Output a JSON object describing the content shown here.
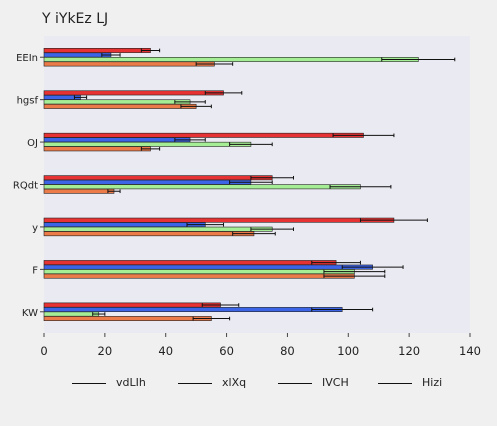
{
  "chart_data": {
    "type": "bar",
    "orientation": "horizontal",
    "title": "Y iYkEz LJ",
    "xlabel": "",
    "ylabel": "",
    "xlim": [
      0,
      140
    ],
    "xticks": [
      0,
      20,
      40,
      60,
      80,
      100,
      120,
      140
    ],
    "grid": false,
    "legend_position": "bottom",
    "categories": [
      "EEIn",
      "hgsf",
      "OJ",
      "RQdt",
      "y",
      "F",
      "KW"
    ],
    "series": [
      {
        "name": "vdLIh",
        "color": "#e63232",
        "values": [
          35,
          59,
          105,
          75,
          115,
          96,
          58
        ],
        "errors": [
          3,
          6,
          10,
          7,
          11,
          8,
          6
        ]
      },
      {
        "name": "xlXq",
        "color": "#3c64e6",
        "values": [
          22,
          12,
          48,
          68,
          53,
          108,
          98
        ],
        "errors": [
          3,
          2,
          5,
          7,
          6,
          10,
          10
        ]
      },
      {
        "name": "IVCH",
        "color": "#a6ee96",
        "values": [
          123,
          48,
          68,
          104,
          75,
          102,
          18
        ],
        "errors": [
          12,
          5,
          7,
          10,
          7,
          10,
          2
        ]
      },
      {
        "name": "Hizi",
        "color": "#ec7b4a",
        "values": [
          56,
          50,
          35,
          23,
          69,
          102,
          55
        ],
        "errors": [
          6,
          5,
          3,
          2,
          7,
          10,
          6
        ]
      }
    ]
  }
}
